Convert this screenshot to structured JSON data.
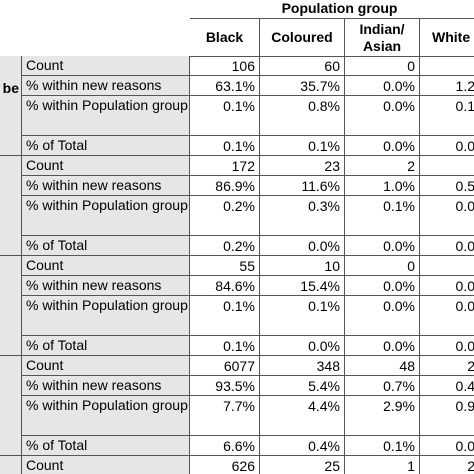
{
  "header": {
    "title": "Population group",
    "columns": [
      "Black",
      "Coloured",
      "Indian/ Asian",
      "White"
    ]
  },
  "groups": [
    {
      "label": "be",
      "rows": [
        [
          "Count",
          "106",
          "60",
          "0"
        ],
        [
          "% within new reasons",
          "63.1%",
          "35.7%",
          "0.0%",
          "1.2"
        ],
        [
          "% within Population group",
          "0.1%",
          "0.8%",
          "0.0%",
          "0.1"
        ],
        [
          "% of Total",
          "0.1%",
          "0.1%",
          "0.0%",
          "0.0"
        ]
      ]
    },
    {
      "rows": [
        [
          "Count",
          "172",
          "23",
          "2"
        ],
        [
          "% within new reasons",
          "86.9%",
          "11.6%",
          "1.0%",
          "0.5"
        ],
        [
          "% within Population group",
          "0.2%",
          "0.3%",
          "0.1%",
          "0.0"
        ],
        [
          "% of Total",
          "0.2%",
          "0.0%",
          "0.0%",
          "0.0"
        ]
      ]
    },
    {
      "rows": [
        [
          "Count",
          "55",
          "10",
          "0"
        ],
        [
          "% within new reasons",
          "84.6%",
          "15.4%",
          "0.0%",
          "0.0"
        ],
        [
          "% within Population group",
          "0.1%",
          "0.1%",
          "0.0%",
          "0.0"
        ],
        [
          "% of Total",
          "0.1%",
          "0.0%",
          "0.0%",
          "0.0"
        ]
      ]
    },
    {
      "rows": [
        [
          "Count",
          "6077",
          "348",
          "48",
          "2"
        ],
        [
          "% within new reasons",
          "93.5%",
          "5.4%",
          "0.7%",
          "0.4"
        ],
        [
          "% within Population group",
          "7.7%",
          "4.4%",
          "2.9%",
          "0.9"
        ],
        [
          "% of Total",
          "6.6%",
          "0.4%",
          "0.1%",
          "0.0"
        ]
      ]
    },
    {
      "rows": [
        [
          "Count",
          "626",
          "25",
          "1",
          "2"
        ]
      ]
    }
  ]
}
